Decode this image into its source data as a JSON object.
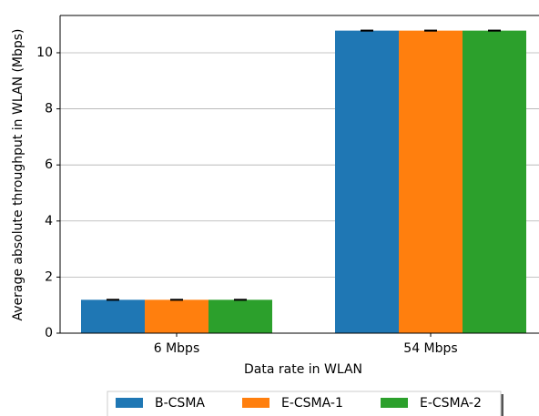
{
  "chart_data": {
    "type": "bar",
    "xlabel": "Data rate in WLAN",
    "ylabel": "Average absolute throughput in WLAN (Mbps)",
    "categories": [
      "6 Mbps",
      "54 Mbps"
    ],
    "series": [
      {
        "name": "B-CSMA",
        "color": "#1f77b4",
        "values": [
          1.19,
          10.79
        ],
        "errors": [
          0.01,
          0.01
        ]
      },
      {
        "name": "E-CSMA-1",
        "color": "#ff7f0e",
        "values": [
          1.19,
          10.79
        ],
        "errors": [
          0.01,
          0.01
        ]
      },
      {
        "name": "E-CSMA-2",
        "color": "#2ca02c",
        "values": [
          1.19,
          10.79
        ],
        "errors": [
          0.01,
          0.01
        ]
      }
    ],
    "ylim": [
      0,
      11.33
    ],
    "yticks": [
      0,
      2,
      4,
      6,
      8,
      10
    ],
    "grid": true,
    "legend": "bottom"
  }
}
